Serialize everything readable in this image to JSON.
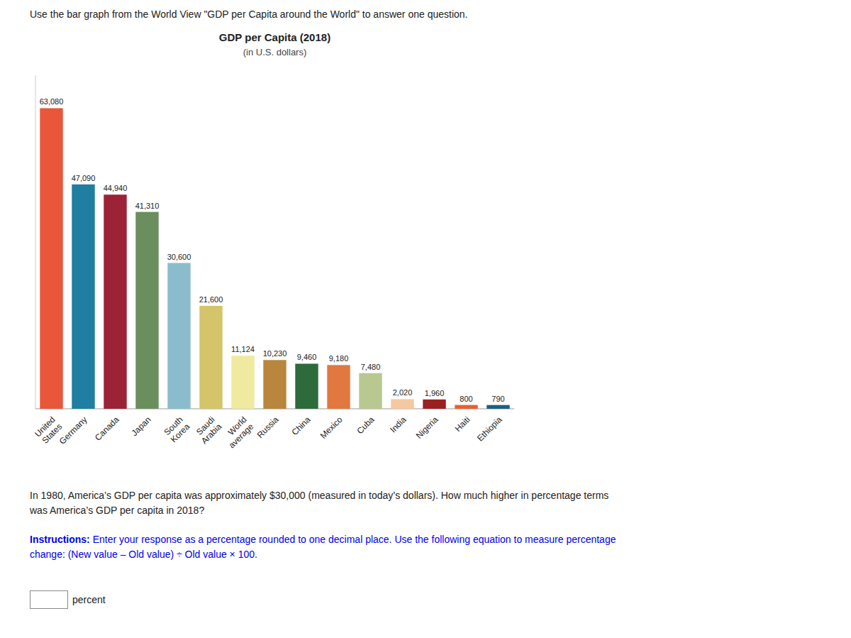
{
  "heading": "Use the bar graph from the World View \"GDP per Capita around the World\" to answer one question.",
  "chart_data": {
    "type": "bar",
    "title": "GDP per Capita (2018)",
    "subtitle": "(in U.S. dollars)",
    "categories": [
      "United\nStates",
      "Germany",
      "Canada",
      "Japan",
      "South\nKorea",
      "Saudi\nArabia",
      "World\naverage",
      "Russia",
      "China",
      "Mexico",
      "Cuba",
      "India",
      "Nigeria",
      "Haiti",
      "Ethiopia"
    ],
    "values": [
      63080,
      47090,
      44940,
      41310,
      30600,
      21600,
      11124,
      10230,
      9460,
      9180,
      7480,
      2020,
      1960,
      800,
      790
    ],
    "value_labels": [
      "63,080",
      "47,090",
      "44,940",
      "41,310",
      "30,600",
      "21,600",
      "11,124",
      "10,230",
      "9,460",
      "9,180",
      "7,480",
      "2,020",
      "1,960",
      "800",
      "790"
    ],
    "colors": [
      "#E8573A",
      "#1F7EA1",
      "#9B2335",
      "#6B8E5E",
      "#8BBCCC",
      "#D4C46A",
      "#F0EAA0",
      "#B8863C",
      "#2D6B3A",
      "#E07840",
      "#B8C890",
      "#F5C8A0",
      "#9B2020",
      "#E86030",
      "#1A6080"
    ],
    "ylim": [
      0,
      70000
    ],
    "data_labels": true,
    "tick_labels": "x",
    "grid": false
  },
  "question": "In 1980, America’s GDP per capita was approximately $30,000 (measured in today’s dollars). How much higher in percentage terms\nwas America’s GDP per capita in 2018?",
  "instructions": {
    "bold": "Instructions:",
    "text": " Enter your response as a percentage rounded to one decimal place. Use the following equation to measure percentage\nchange: (New value – Old value) ÷ Old value × 100.",
    "color": "#0000EE"
  },
  "input_label": "percent"
}
